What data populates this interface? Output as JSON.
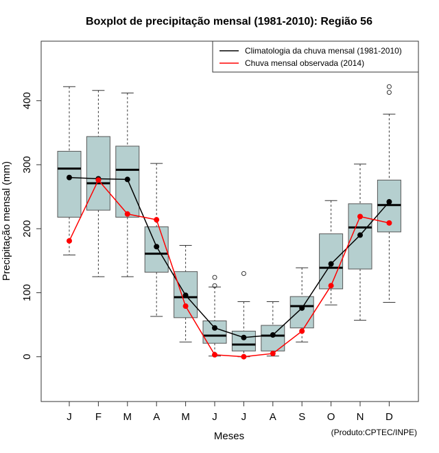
{
  "chart_data": {
    "type": "boxplot",
    "title": "Boxplot de precipitação mensal (1981-2010): Região 56",
    "xlabel": "Meses",
    "ylabel": "Precipitação mensal (mm)",
    "ylim": [
      -70,
      493
    ],
    "yticks": [
      0,
      100,
      200,
      300,
      400
    ],
    "categories": [
      "J",
      "F",
      "M",
      "A",
      "M",
      "J",
      "J",
      "A",
      "S",
      "O",
      "N",
      "D"
    ],
    "boxes": [
      {
        "min": 159,
        "q1": 218,
        "median": 294,
        "q3": 321,
        "max": 422,
        "outliers": []
      },
      {
        "min": 125,
        "q1": 229,
        "median": 271,
        "q3": 344,
        "max": 416,
        "outliers": []
      },
      {
        "min": 125,
        "q1": 218,
        "median": 292,
        "q3": 329,
        "max": 412,
        "outliers": []
      },
      {
        "min": 63,
        "q1": 132,
        "median": 161,
        "q3": 203,
        "max": 302,
        "outliers": []
      },
      {
        "min": 23,
        "q1": 61,
        "median": 93,
        "q3": 133,
        "max": 174,
        "outliers": []
      },
      {
        "min": 1,
        "q1": 21,
        "median": 33,
        "q3": 56,
        "max": 109,
        "outliers": [
          111,
          124
        ]
      },
      {
        "min": 0,
        "q1": 9,
        "median": 19,
        "q3": 40,
        "max": 86,
        "outliers": [
          130
        ]
      },
      {
        "min": 1,
        "q1": 9,
        "median": 33,
        "q3": 49,
        "max": 86,
        "outliers": []
      },
      {
        "min": 23,
        "q1": 45,
        "median": 79,
        "q3": 94,
        "max": 139,
        "outliers": []
      },
      {
        "min": 81,
        "q1": 106,
        "median": 139,
        "q3": 192,
        "max": 244,
        "outliers": []
      },
      {
        "min": 57,
        "q1": 137,
        "median": 202,
        "q3": 239,
        "max": 301,
        "outliers": []
      },
      {
        "min": 85,
        "q1": 195,
        "median": 237,
        "q3": 276,
        "max": 379,
        "outliers": [
          413,
          422
        ]
      }
    ],
    "series": [
      {
        "name": "Climatologia da chuva mensal (1981-2010)",
        "color": "#000000",
        "values": [
          280,
          278,
          277,
          172,
          96,
          45,
          30,
          34,
          76,
          145,
          190,
          242
        ]
      },
      {
        "name": "Chuva mensal observada (2014)",
        "color": "#ff0000",
        "values": [
          181,
          276,
          223,
          214,
          79,
          3,
          0,
          5,
          40,
          111,
          219,
          209
        ]
      }
    ],
    "box_color": "#b5cfcf",
    "legend_position": "top-right"
  },
  "credit": "(Produto:CPTEC/INPE)"
}
